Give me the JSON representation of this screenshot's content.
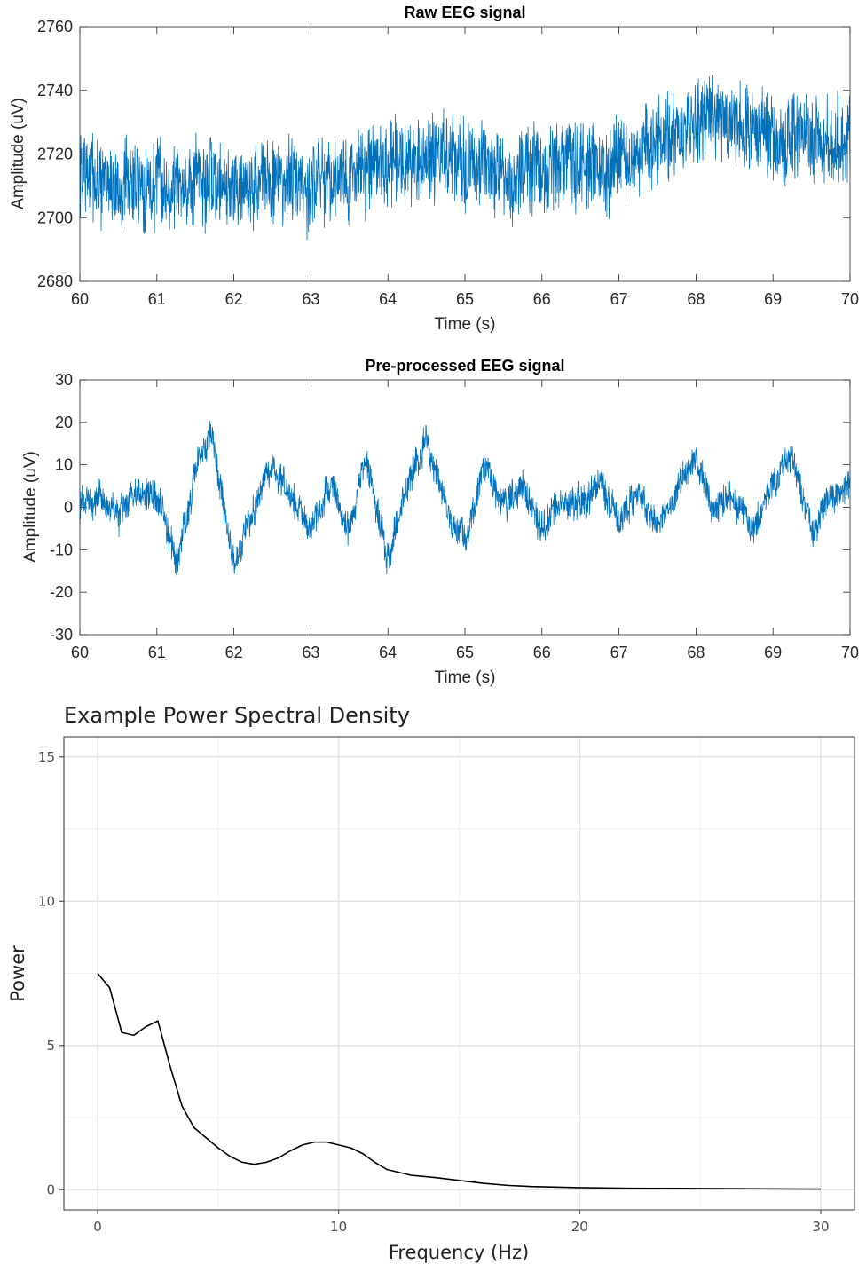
{
  "chart_data": [
    {
      "type": "line",
      "title": "Raw EEG signal",
      "xlabel": "Time (s)",
      "ylabel": "Amplitude (uV)",
      "xlim": [
        60,
        70
      ],
      "ylim": [
        2680,
        2760
      ],
      "xticks": [
        "60",
        "61",
        "62",
        "63",
        "64",
        "65",
        "66",
        "67",
        "68",
        "69",
        "70"
      ],
      "yticks": [
        "2680",
        "2700",
        "2720",
        "2740",
        "2760"
      ],
      "line_color": "#0072BD",
      "grid": false,
      "series": [
        {
          "x": [
            60,
            60.5,
            61,
            61.5,
            62,
            62.5,
            63,
            63.5,
            64,
            64.5,
            65,
            65.5,
            66,
            66.5,
            67,
            67.5,
            68,
            68.5,
            69,
            69.5,
            70
          ],
          "values": [
            2714,
            2709,
            2711,
            2712,
            2710,
            2712,
            2711,
            2713,
            2716,
            2719,
            2716,
            2712,
            2714,
            2716,
            2718,
            2722,
            2730,
            2731,
            2726,
            2724,
            2725
          ]
        }
      ]
    },
    {
      "type": "line",
      "title": "Pre-processed EEG signal",
      "xlabel": "Time (s)",
      "ylabel": "Amplitude (uV)",
      "xlim": [
        60,
        70
      ],
      "ylim": [
        -30,
        30
      ],
      "xticks": [
        "60",
        "61",
        "62",
        "63",
        "64",
        "65",
        "66",
        "67",
        "68",
        "69",
        "70"
      ],
      "yticks": [
        "-30",
        "-20",
        "-10",
        "0",
        "10",
        "20",
        "30"
      ],
      "line_color": "#0072BD",
      "grid": false,
      "series": [
        {
          "x": [
            60,
            60.25,
            60.5,
            60.75,
            61,
            61.25,
            61.5,
            61.7,
            62,
            62.25,
            62.5,
            62.75,
            63,
            63.25,
            63.5,
            63.7,
            64,
            64.25,
            64.5,
            64.75,
            65,
            65.25,
            65.5,
            65.75,
            66,
            66.25,
            66.5,
            66.75,
            67,
            67.25,
            67.5,
            67.75,
            68,
            68.25,
            68.5,
            68.75,
            69,
            69.25,
            69.5,
            69.75,
            70
          ],
          "values": [
            0,
            3,
            -2,
            5,
            2,
            -12,
            8,
            18,
            -14,
            0,
            10,
            2,
            -5,
            5,
            -6,
            12,
            -12,
            5,
            16,
            0,
            -8,
            10,
            0,
            5,
            -5,
            2,
            0,
            6,
            -3,
            4,
            -4,
            4,
            12,
            0,
            2,
            -5,
            6,
            12,
            -6,
            3,
            5
          ]
        }
      ]
    },
    {
      "type": "line",
      "title": "Example Power Spectral Density",
      "xlabel": "Frequency (Hz)",
      "ylabel": "Power",
      "xlim": [
        -1.4,
        31.4
      ],
      "ylim": [
        -0.7,
        15.7
      ],
      "xticks": [
        "0",
        "10",
        "20",
        "30"
      ],
      "yticks": [
        "0",
        "5",
        "10",
        "15"
      ],
      "line_color": "#000000",
      "grid": true,
      "series": [
        {
          "x": [
            0,
            0.5,
            1,
            1.5,
            2,
            2.5,
            3,
            3.5,
            4,
            4.5,
            5,
            5.5,
            6,
            6.5,
            7,
            7.5,
            8,
            8.5,
            9,
            9.5,
            10,
            10.5,
            11,
            11.5,
            12,
            13,
            14,
            15,
            16,
            17,
            18,
            20,
            22,
            25,
            28,
            30
          ],
          "values": [
            7.5,
            7.0,
            5.45,
            5.35,
            5.65,
            5.85,
            4.3,
            2.9,
            2.15,
            1.8,
            1.45,
            1.15,
            0.95,
            0.88,
            0.95,
            1.1,
            1.35,
            1.55,
            1.65,
            1.65,
            1.55,
            1.45,
            1.25,
            0.95,
            0.7,
            0.5,
            0.42,
            0.32,
            0.22,
            0.15,
            0.11,
            0.07,
            0.05,
            0.04,
            0.03,
            0.02
          ]
        }
      ]
    }
  ]
}
